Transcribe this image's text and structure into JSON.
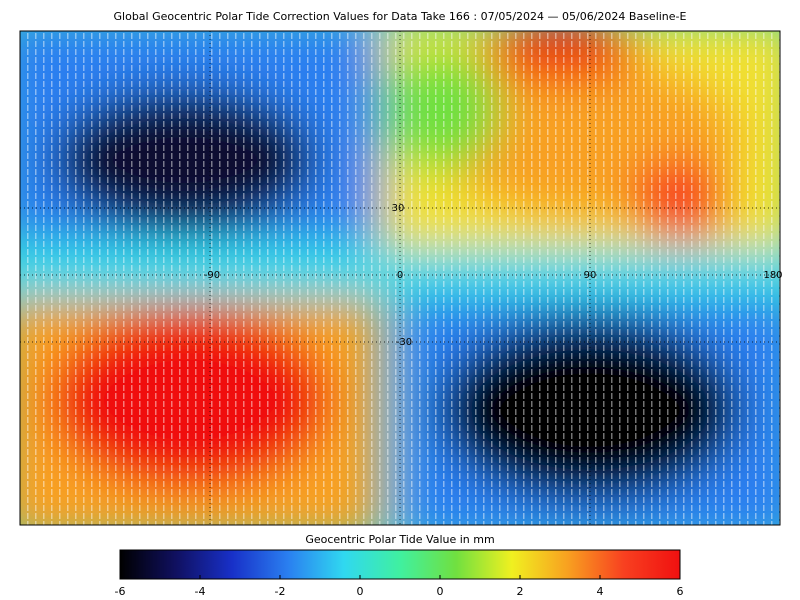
{
  "title": "Global Geocentric Polar Tide Correction Values for Data Take 166 : 07/05/2024 — 05/06/2024 Baseline-E",
  "map": {
    "labels": [
      "30",
      "-90",
      "0",
      "90",
      "180",
      "-30"
    ]
  },
  "colorbar": {
    "label": "Geocentric Polar Tide Value in mm",
    "ticks": [
      "-6",
      "-4",
      "-2",
      "0",
      "0",
      "2",
      "4",
      "6"
    ],
    "colors": [
      "#000000",
      "#101060",
      "#1830c8",
      "#2a7ff0",
      "#30d8f0",
      "#40f0a0",
      "#70e040",
      "#f0f020",
      "#f8a020",
      "#f84020",
      "#f01010"
    ]
  }
}
